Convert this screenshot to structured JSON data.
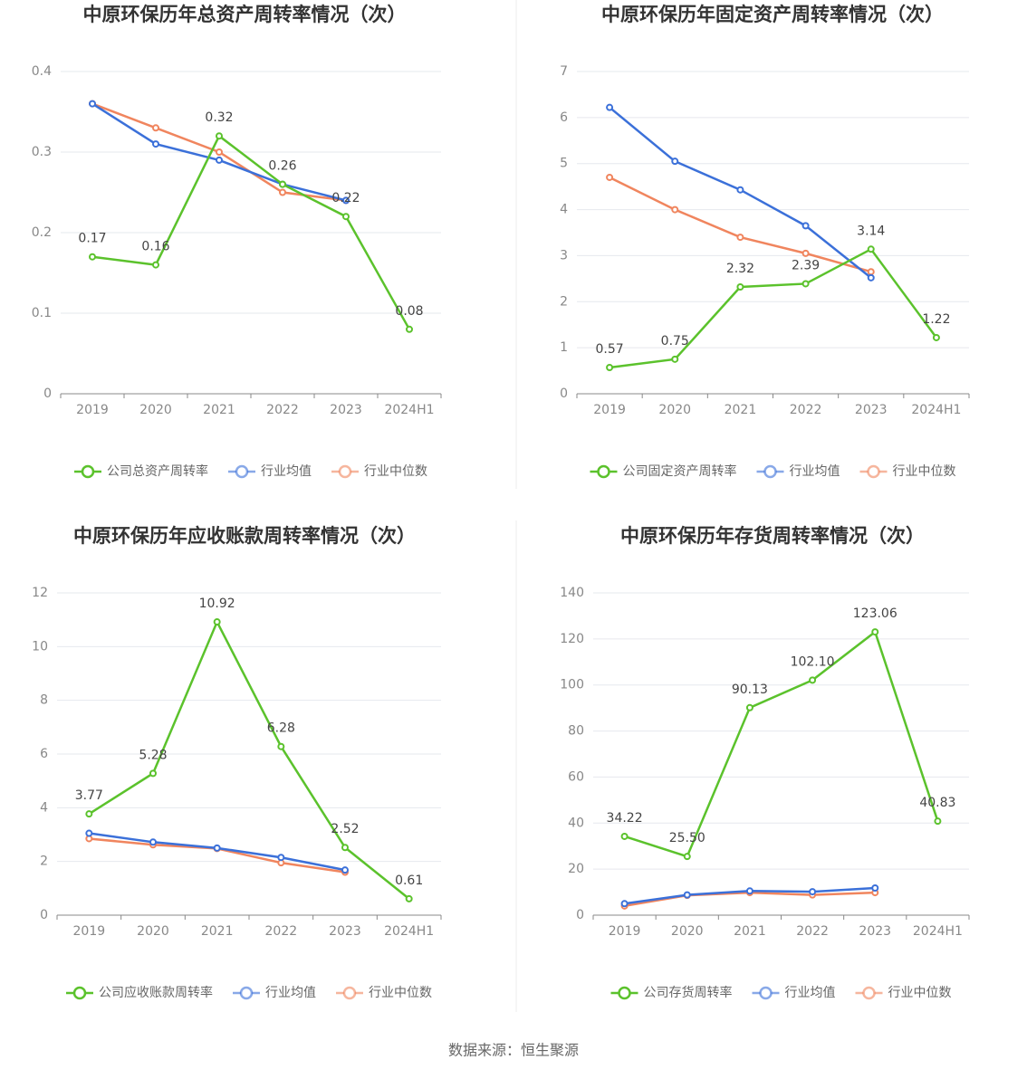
{
  "chart_data": [
    {
      "type": "line",
      "title": "中原环保历年总资产周转率情况（次）",
      "categories": [
        "2019",
        "2020",
        "2021",
        "2022",
        "2023",
        "2024H1"
      ],
      "ylim": [
        0,
        0.4
      ],
      "yticks": [
        0,
        0.1,
        0.2,
        0.3,
        0.4
      ],
      "grid": true,
      "series": [
        {
          "name": "公司总资产周转率",
          "color": "#5bc22c",
          "values": [
            0.17,
            0.16,
            0.32,
            0.26,
            0.22,
            0.08
          ]
        },
        {
          "name": "行业均值",
          "color": "#3b70d9",
          "values": [
            0.36,
            0.31,
            0.29,
            0.26,
            0.24,
            null
          ]
        },
        {
          "name": "行业中位数",
          "color": "#f0855e",
          "values": [
            0.36,
            0.33,
            0.3,
            0.25,
            0.24,
            null
          ]
        }
      ]
    },
    {
      "type": "line",
      "title": "中原环保历年固定资产周转率情况（次）",
      "categories": [
        "2019",
        "2020",
        "2021",
        "2022",
        "2023",
        "2024H1"
      ],
      "ylim": [
        0,
        7
      ],
      "yticks": [
        0,
        1,
        2,
        3,
        4,
        5,
        6,
        7
      ],
      "grid": true,
      "series": [
        {
          "name": "公司固定资产周转率",
          "color": "#5bc22c",
          "values": [
            0.57,
            0.75,
            2.32,
            2.39,
            3.14,
            1.22
          ]
        },
        {
          "name": "行业均值",
          "color": "#3b70d9",
          "values": [
            6.22,
            5.05,
            4.43,
            3.65,
            2.52,
            null
          ]
        },
        {
          "name": "行业中位数",
          "color": "#f0855e",
          "values": [
            4.7,
            4.0,
            3.4,
            3.05,
            2.65,
            null
          ]
        }
      ]
    },
    {
      "type": "line",
      "title": "中原环保历年应收账款周转率情况（次）",
      "categories": [
        "2019",
        "2020",
        "2021",
        "2022",
        "2023",
        "2024H1"
      ],
      "ylim": [
        0,
        12
      ],
      "yticks": [
        0,
        2,
        4,
        6,
        8,
        10,
        12
      ],
      "grid": true,
      "series": [
        {
          "name": "公司应收账款周转率",
          "color": "#5bc22c",
          "values": [
            3.77,
            5.28,
            10.92,
            6.28,
            2.52,
            0.61
          ]
        },
        {
          "name": "行业均值",
          "color": "#3b70d9",
          "values": [
            3.05,
            2.72,
            2.5,
            2.15,
            1.68,
            null
          ]
        },
        {
          "name": "行业中位数",
          "color": "#f0855e",
          "values": [
            2.85,
            2.62,
            2.48,
            1.95,
            1.6,
            null
          ]
        }
      ]
    },
    {
      "type": "line",
      "title": "中原环保历年存货周转率情况（次）",
      "categories": [
        "2019",
        "2020",
        "2021",
        "2022",
        "2023",
        "2024H1"
      ],
      "ylim": [
        0,
        140
      ],
      "yticks": [
        0,
        20,
        40,
        60,
        80,
        100,
        120,
        140
      ],
      "grid": true,
      "series": [
        {
          "name": "公司存货周转率",
          "color": "#5bc22c",
          "values": [
            34.22,
            25.5,
            90.13,
            102.1,
            123.06,
            40.83
          ],
          "value_labels": [
            "34.22",
            "25.50",
            "90.13",
            "102.10",
            "123.06",
            "40.83"
          ]
        },
        {
          "name": "行业均值",
          "color": "#3b70d9",
          "values": [
            5.0,
            8.8,
            10.5,
            10.2,
            11.8,
            null
          ]
        },
        {
          "name": "行业中位数",
          "color": "#f0855e",
          "values": [
            4.0,
            8.6,
            9.8,
            8.8,
            9.8,
            null
          ]
        }
      ]
    }
  ],
  "source": "数据来源：恒生聚源"
}
